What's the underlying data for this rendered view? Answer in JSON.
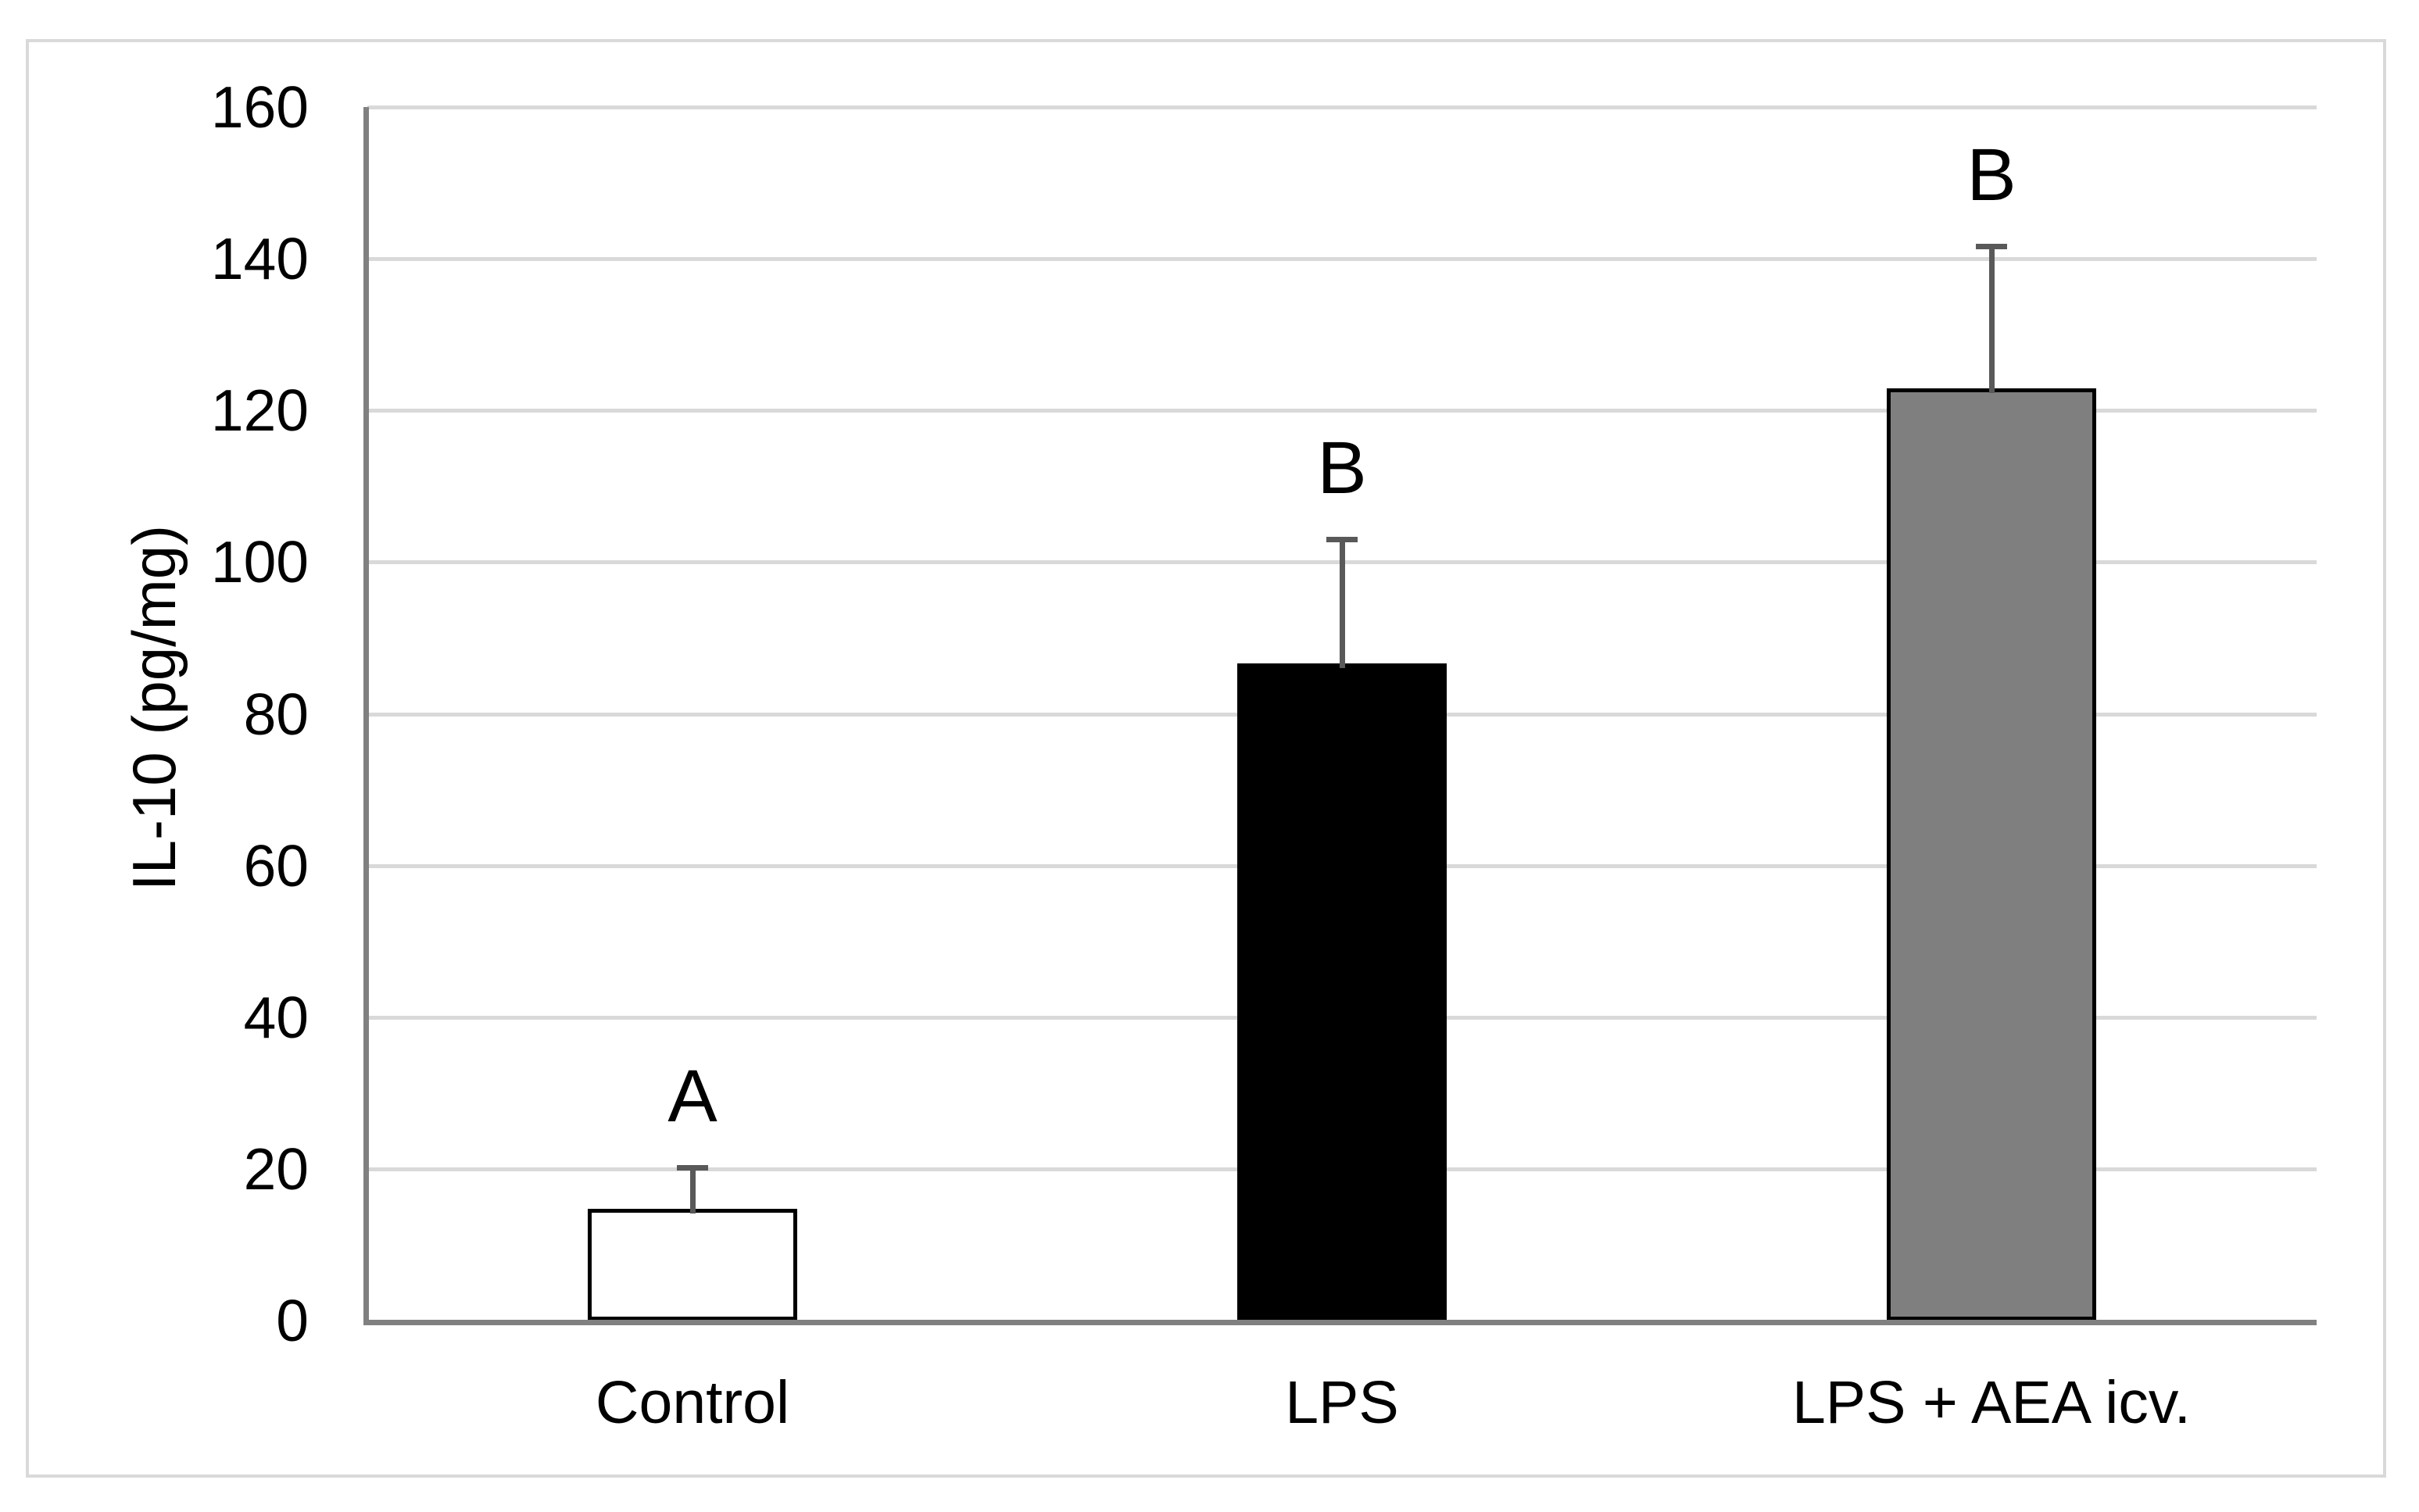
{
  "figure": {
    "background": "#ffffff",
    "border_color": "#d9d9d9"
  },
  "chart_data": {
    "type": "bar",
    "title": "",
    "xlabel": "",
    "ylabel": "IL-10 (pg/mg)",
    "categories": [
      "Control",
      "LPS",
      "LPS + AEA icv."
    ],
    "values": [
      14.7,
      86.6,
      122.9
    ],
    "errors_plus": [
      5.5,
      16.4,
      18.8
    ],
    "sig_letters": [
      "A",
      "B",
      "B"
    ],
    "ylim": [
      0,
      160
    ],
    "yticks": [
      0,
      20,
      40,
      60,
      80,
      100,
      120,
      140,
      160
    ],
    "grid": "horizontal-major",
    "legend_position": "none",
    "bar_fill_colors": [
      "#ffffff",
      "#000000",
      "#7f7f7f"
    ],
    "bar_border_color": "#000000",
    "error_bar_color": "#595959",
    "gridline_color": "#d9d9d9",
    "axis_line_color": "#808080",
    "text_color": "#000000"
  }
}
